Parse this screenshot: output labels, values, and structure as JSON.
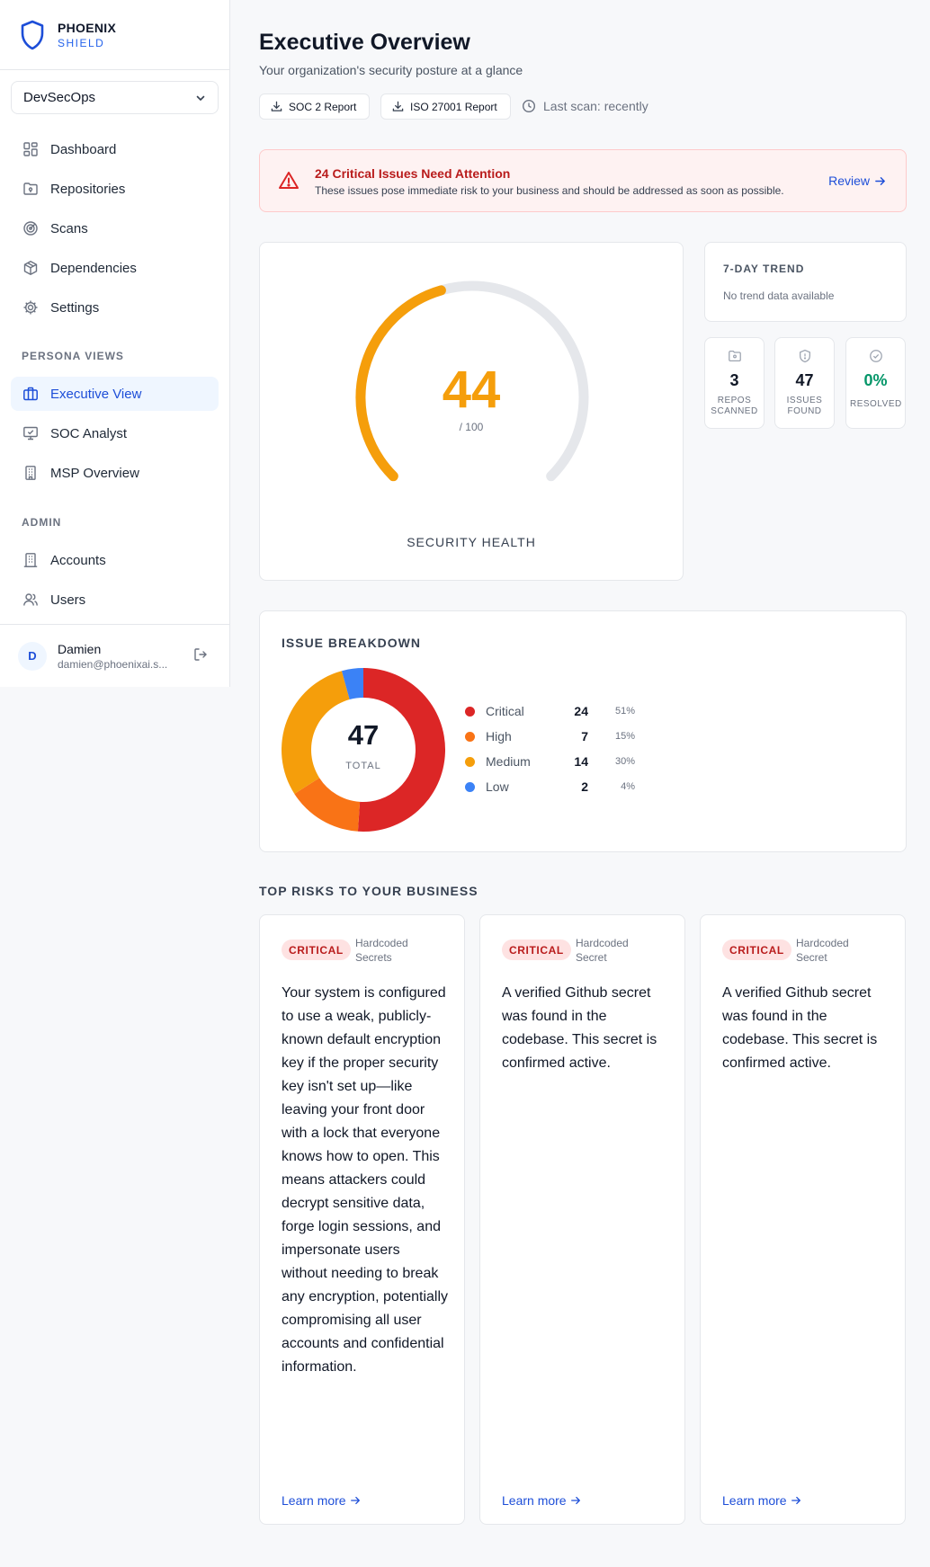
{
  "brand": {
    "line1": "PHOENIX",
    "line2": "SHIELD"
  },
  "org_select": {
    "value": "DevSecOps"
  },
  "nav": {
    "main": [
      {
        "label": "Dashboard",
        "icon": "grid-icon"
      },
      {
        "label": "Repositories",
        "icon": "folder-git-icon"
      },
      {
        "label": "Scans",
        "icon": "radar-icon"
      },
      {
        "label": "Dependencies",
        "icon": "package-icon"
      },
      {
        "label": "Settings",
        "icon": "gear-icon"
      }
    ],
    "persona_label": "PERSONA VIEWS",
    "persona": [
      {
        "label": "Executive View",
        "icon": "briefcase-icon",
        "active": true
      },
      {
        "label": "SOC Analyst",
        "icon": "monitor-check-icon"
      },
      {
        "label": "MSP Overview",
        "icon": "building-icon"
      }
    ],
    "admin_label": "ADMIN",
    "admin": [
      {
        "label": "Accounts",
        "icon": "building-icon"
      },
      {
        "label": "Users",
        "icon": "users-icon"
      }
    ]
  },
  "user": {
    "initial": "D",
    "name": "Damien",
    "email": "damien@phoenixai.s..."
  },
  "header": {
    "title": "Executive Overview",
    "subtitle": "Your organization's security posture at a glance",
    "soc2_button": "SOC 2 Report",
    "iso_button": "ISO 27001 Report",
    "last_scan": "Last scan: recently"
  },
  "alert": {
    "title": "24 Critical Issues Need Attention",
    "description": "These issues pose immediate risk to your business and should be addressed as soon as possible.",
    "action": "Review"
  },
  "health": {
    "score": "44",
    "max": "/ 100",
    "score_value": 44,
    "max_value": 100,
    "label": "SECURITY HEALTH",
    "color": "#f59e0b"
  },
  "trend": {
    "title": "7-DAY TREND",
    "empty": "No trend data available"
  },
  "stats": [
    {
      "value": "3",
      "label": "REPOS SCANNED",
      "icon": "folder-git-icon",
      "color": "#111827"
    },
    {
      "value": "47",
      "label": "ISSUES FOUND",
      "icon": "shield-icon",
      "color": "#111827"
    },
    {
      "value": "0%",
      "label": "RESOLVED",
      "icon": "check-circle-icon",
      "color": "#059669"
    }
  ],
  "breakdown": {
    "title": "ISSUE BREAKDOWN",
    "total": "47",
    "total_label": "TOTAL",
    "items": [
      {
        "name": "Critical",
        "count": "24",
        "pct": "51%",
        "value": 24,
        "color": "#dc2626"
      },
      {
        "name": "High",
        "count": "7",
        "pct": "15%",
        "value": 7,
        "color": "#f97316"
      },
      {
        "name": "Medium",
        "count": "14",
        "pct": "30%",
        "value": 14,
        "color": "#f59e0b"
      },
      {
        "name": "Low",
        "count": "2",
        "pct": "4%",
        "value": 2,
        "color": "#3b82f6"
      }
    ]
  },
  "risks": {
    "title": "TOP RISKS TO YOUR BUSINESS",
    "items": [
      {
        "badge": "CRITICAL",
        "category": "Hardcoded Secrets",
        "description": "Your system is configured to use a weak, publicly-known default encryption key if the proper security key isn't set up—like leaving your front door with a lock that everyone knows how to open. This means attackers could decrypt sensitive data, forge login sessions, and impersonate users without needing to break any encryption, potentially compromising all user accounts and confidential information.",
        "link": "Learn more"
      },
      {
        "badge": "CRITICAL",
        "category": "Hardcoded Secret",
        "description": "A verified Github secret was found in the codebase. This secret is confirmed active.",
        "link": "Learn more"
      },
      {
        "badge": "CRITICAL",
        "category": "Hardcoded Secret",
        "description": "A verified Github secret was found in the codebase. This secret is confirmed active.",
        "link": "Learn more"
      }
    ]
  }
}
